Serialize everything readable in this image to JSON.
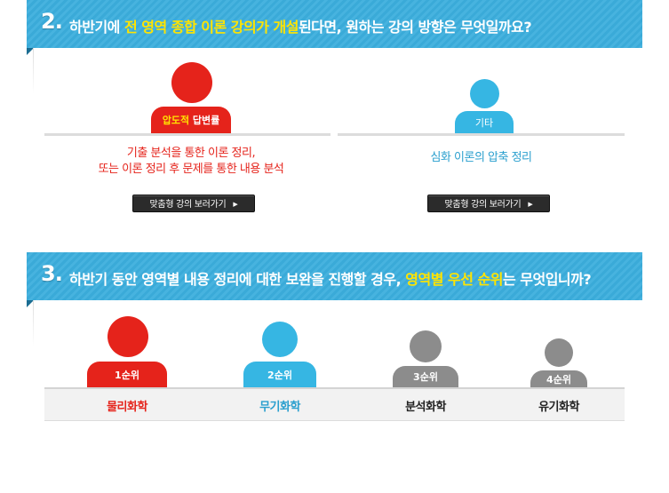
{
  "section2": {
    "number": "2.",
    "title_prefix": "하반기에 ",
    "title_highlight": "전 영역 종합 이론 강의가 개설",
    "title_suffix": "된다면, 원하는 강의 방향은 무엇일까요?",
    "options": [
      {
        "badge_highlight": "압도적",
        "badge_label": " 답변률",
        "desc_line1": "기출 분석을 통한 이론 정리,",
        "desc_line2": "또는 이론 정리 후 문제를 통한 내용 분석",
        "button_label": "맞춤형 강의 보러가기"
      },
      {
        "badge_label": "기타",
        "desc_line1": "심화 이론의 압축 정리",
        "button_label": "맞춤형 강의 보러가기"
      }
    ]
  },
  "section3": {
    "number": "3.",
    "title_prefix": "하반기 동안 영역별 내용 정리에 대한 보완을 진행할 경우, ",
    "title_highlight": "영역별 우선 순위",
    "title_suffix": "는 무엇입니까?",
    "ranks": [
      {
        "rank": "1순위",
        "subject": "물리화학",
        "color": "#e5231b"
      },
      {
        "rank": "2순위",
        "subject": "무기화학",
        "color": "#2a9fce"
      },
      {
        "rank": "3순위",
        "subject": "분석화학",
        "color": "#222222"
      },
      {
        "rank": "4순위",
        "subject": "유기화학",
        "color": "#222222"
      }
    ]
  },
  "colors": {
    "red": "#e5231b",
    "blue": "#36b6e3",
    "gray": "#8c8c8c",
    "banner": "#3aaad8",
    "highlight": "#ffe400"
  },
  "icons": {
    "button_arrow": "triangle-right-icon",
    "person": "person-icon"
  }
}
